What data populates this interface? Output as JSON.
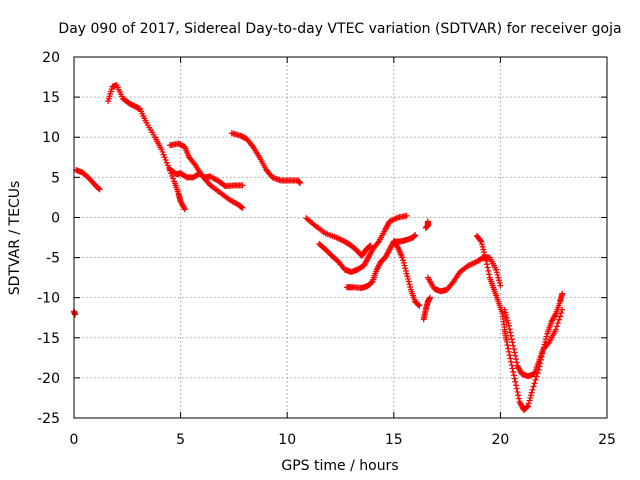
{
  "chart_data": {
    "type": "scatter",
    "title": "Day 090 of 2017, Sidereal Day-to-day VTEC variation (SDTVAR) for receiver goja",
    "xlabel": "GPS time / hours",
    "ylabel": "SDTVAR / TECUs",
    "xlim": [
      0,
      25
    ],
    "ylim": [
      -25,
      20
    ],
    "x_ticks": [
      "0",
      "5",
      "10",
      "15",
      "20",
      "25"
    ],
    "y_ticks": [
      "20",
      "15",
      "10",
      "5",
      "0",
      "-5",
      "-10",
      "-15",
      "-20",
      "-25"
    ],
    "grid": true,
    "marker": "plus",
    "series": [
      {
        "color": "#ff0000",
        "arcs": [
          [
            [
              0.0,
              -11.7
            ],
            [
              0.05,
              -12.1
            ]
          ],
          [
            [
              0.1,
              5.9
            ],
            [
              0.4,
              5.6
            ],
            [
              0.7,
              4.9
            ],
            [
              1.0,
              4.0
            ],
            [
              1.2,
              3.5
            ]
          ],
          [
            [
              1.6,
              14.5
            ],
            [
              1.8,
              16.3
            ],
            [
              2.0,
              16.5
            ],
            [
              2.3,
              14.8
            ],
            [
              2.6,
              14.2
            ],
            [
              2.9,
              13.8
            ],
            [
              3.1,
              13.5
            ],
            [
              3.4,
              11.8
            ],
            [
              3.8,
              10.0
            ],
            [
              4.1,
              8.5
            ],
            [
              4.4,
              6.5
            ],
            [
              4.7,
              4.5
            ],
            [
              4.9,
              3.0
            ],
            [
              5.0,
              2.0
            ],
            [
              5.2,
              1.0
            ]
          ],
          [
            [
              4.5,
              6.0
            ],
            [
              4.8,
              5.4
            ],
            [
              5.0,
              5.5
            ],
            [
              5.3,
              5.0
            ],
            [
              5.6,
              5.0
            ],
            [
              5.9,
              5.5
            ],
            [
              6.1,
              5.0
            ],
            [
              6.4,
              5.1
            ],
            [
              6.8,
              4.5
            ],
            [
              7.1,
              3.9
            ],
            [
              7.5,
              4.0
            ],
            [
              7.9,
              4.0
            ]
          ],
          [
            [
              4.5,
              9.0
            ],
            [
              4.9,
              9.2
            ],
            [
              5.2,
              8.8
            ],
            [
              5.4,
              7.5
            ],
            [
              5.7,
              6.5
            ],
            [
              6.0,
              5.2
            ],
            [
              6.4,
              4.0
            ],
            [
              6.9,
              3.0
            ],
            [
              7.3,
              2.2
            ],
            [
              7.7,
              1.6
            ],
            [
              7.9,
              1.2
            ]
          ],
          [
            [
              7.4,
              10.5
            ],
            [
              7.8,
              10.2
            ],
            [
              8.1,
              9.8
            ],
            [
              8.4,
              8.8
            ],
            [
              8.7,
              7.5
            ],
            [
              9.0,
              6.0
            ],
            [
              9.3,
              5.0
            ],
            [
              9.7,
              4.6
            ],
            [
              10.1,
              4.6
            ],
            [
              10.5,
              4.6
            ],
            [
              10.6,
              4.3
            ]
          ],
          [
            [
              10.9,
              -0.1
            ],
            [
              11.3,
              -1.0
            ],
            [
              11.8,
              -2.0
            ],
            [
              12.3,
              -2.5
            ],
            [
              12.7,
              -3.0
            ],
            [
              13.0,
              -3.5
            ],
            [
              13.3,
              -4.2
            ],
            [
              13.5,
              -4.8
            ],
            [
              13.7,
              -4.0
            ],
            [
              13.9,
              -3.5
            ]
          ],
          [
            [
              11.5,
              -3.3
            ],
            [
              11.8,
              -4.0
            ],
            [
              12.1,
              -4.8
            ],
            [
              12.4,
              -5.5
            ],
            [
              12.7,
              -6.5
            ],
            [
              13.0,
              -6.8
            ],
            [
              13.3,
              -6.5
            ],
            [
              13.6,
              -6.0
            ],
            [
              13.8,
              -5.0
            ],
            [
              14.0,
              -4.0
            ],
            [
              14.3,
              -3.0
            ],
            [
              14.6,
              -1.5
            ],
            [
              14.8,
              -0.5
            ],
            [
              15.2,
              0.0
            ],
            [
              15.6,
              0.2
            ]
          ],
          [
            [
              12.8,
              -8.7
            ],
            [
              13.1,
              -8.7
            ],
            [
              13.5,
              -8.8
            ],
            [
              13.8,
              -8.5
            ],
            [
              14.0,
              -8.0
            ],
            [
              14.2,
              -6.5
            ],
            [
              14.4,
              -5.5
            ],
            [
              14.6,
              -5.0
            ],
            [
              14.8,
              -4.0
            ],
            [
              15.0,
              -3.0
            ],
            [
              15.2,
              -3.8
            ],
            [
              15.4,
              -5.0
            ],
            [
              15.6,
              -7.0
            ],
            [
              15.8,
              -9.0
            ],
            [
              16.0,
              -10.5
            ],
            [
              16.2,
              -11.0
            ]
          ],
          [
            [
              15.0,
              -3.0
            ],
            [
              15.3,
              -3.0
            ],
            [
              15.6,
              -2.8
            ],
            [
              15.9,
              -2.5
            ],
            [
              16.0,
              -2.2
            ]
          ],
          [
            [
              16.5,
              -1.3
            ],
            [
              16.6,
              -1.0
            ],
            [
              16.6,
              -0.5
            ]
          ],
          [
            [
              16.4,
              -12.7
            ],
            [
              16.5,
              -11.5
            ],
            [
              16.6,
              -10.5
            ],
            [
              16.7,
              -10.0
            ]
          ],
          [
            [
              16.6,
              -7.5
            ],
            [
              16.9,
              -8.9
            ],
            [
              17.2,
              -9.2
            ],
            [
              17.5,
              -9.0
            ],
            [
              17.8,
              -8.0
            ],
            [
              18.1,
              -6.8
            ],
            [
              18.5,
              -6.0
            ],
            [
              18.9,
              -5.5
            ],
            [
              19.2,
              -5.0
            ],
            [
              19.5,
              -5.0
            ],
            [
              19.8,
              -6.5
            ],
            [
              20.0,
              -8.5
            ]
          ],
          [
            [
              18.9,
              -2.3
            ],
            [
              19.1,
              -3.0
            ],
            [
              19.3,
              -5.0
            ],
            [
              19.5,
              -7.5
            ],
            [
              19.7,
              -9.0
            ],
            [
              19.9,
              -10.5
            ],
            [
              20.1,
              -12.0
            ],
            [
              20.2,
              -14.0
            ],
            [
              20.3,
              -15.5
            ],
            [
              20.5,
              -18.0
            ],
            [
              20.7,
              -20.5
            ],
            [
              20.9,
              -23.0
            ],
            [
              21.1,
              -24.0
            ],
            [
              21.3,
              -23.5
            ],
            [
              21.5,
              -21.5
            ],
            [
              21.8,
              -19.0
            ],
            [
              22.0,
              -16.5
            ],
            [
              22.2,
              -14.5
            ],
            [
              22.4,
              -13.0
            ],
            [
              22.6,
              -12.0
            ],
            [
              22.8,
              -10.5
            ],
            [
              22.9,
              -9.5
            ]
          ],
          [
            [
              20.2,
              -11.5
            ],
            [
              20.4,
              -13.5
            ],
            [
              20.6,
              -16.0
            ],
            [
              20.8,
              -18.5
            ],
            [
              21.0,
              -19.5
            ],
            [
              21.3,
              -19.8
            ],
            [
              21.6,
              -19.5
            ],
            [
              21.8,
              -18.0
            ],
            [
              22.0,
              -16.5
            ],
            [
              22.3,
              -15.5
            ],
            [
              22.6,
              -14.0
            ],
            [
              22.9,
              -11.5
            ]
          ]
        ]
      }
    ]
  }
}
